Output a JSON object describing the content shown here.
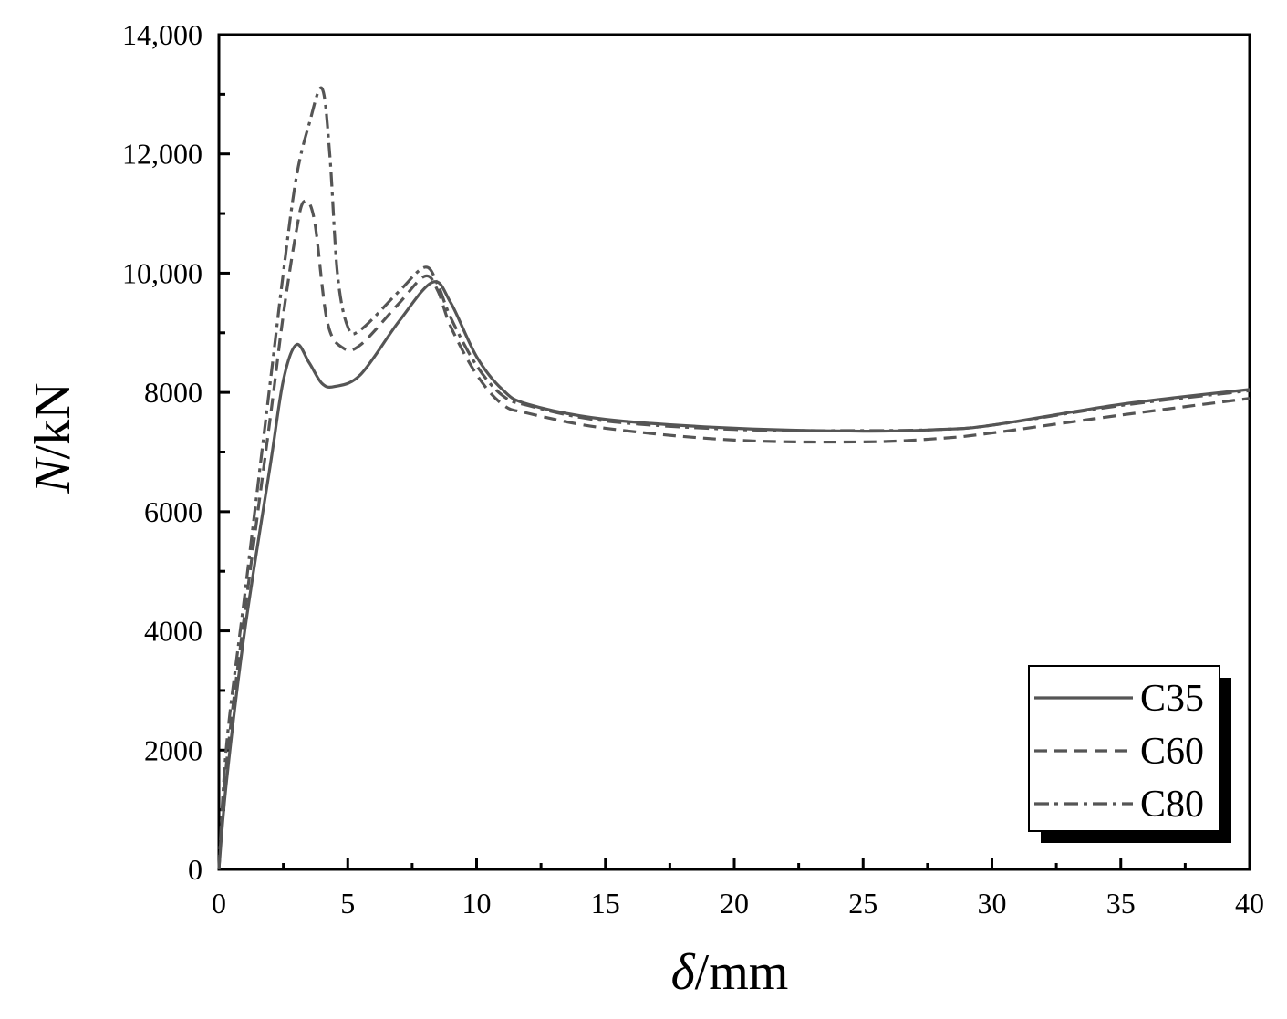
{
  "chart_data": {
    "type": "line",
    "xlabel": {
      "symbol": "δ",
      "unit": "/mm"
    },
    "ylabel": {
      "symbol": "N",
      "unit": "/kN"
    },
    "xlim": [
      0,
      40
    ],
    "ylim": [
      0,
      14000
    ],
    "xticks": [
      0,
      5,
      10,
      15,
      20,
      25,
      30,
      35,
      40
    ],
    "yticks": [
      0,
      2000,
      4000,
      6000,
      8000,
      10000,
      12000,
      14000
    ],
    "xtick_labels": [
      "0",
      "5",
      "10",
      "15",
      "20",
      "25",
      "30",
      "35",
      "40"
    ],
    "ytick_labels": [
      "0",
      "2000",
      "4000",
      "6000",
      "8000",
      "10,000",
      "12,000",
      "14,000"
    ],
    "grid": false,
    "legend_position": "bottom-right",
    "line_color": "#555555",
    "series": [
      {
        "name": "C35",
        "dash": "solid",
        "points": [
          [
            0,
            0
          ],
          [
            0.3,
            1500
          ],
          [
            1,
            4000
          ],
          [
            2,
            6800
          ],
          [
            2.5,
            8200
          ],
          [
            3,
            8800
          ],
          [
            3.5,
            8500
          ],
          [
            4,
            8150
          ],
          [
            4.5,
            8100
          ],
          [
            5.5,
            8300
          ],
          [
            7,
            9200
          ],
          [
            8.3,
            9850
          ],
          [
            9,
            9500
          ],
          [
            10,
            8600
          ],
          [
            11,
            8050
          ],
          [
            12,
            7800
          ],
          [
            15,
            7550
          ],
          [
            20,
            7400
          ],
          [
            25,
            7350
          ],
          [
            28,
            7380
          ],
          [
            30,
            7450
          ],
          [
            35,
            7800
          ],
          [
            40,
            8050
          ]
        ]
      },
      {
        "name": "C60",
        "dash": "dashed",
        "points": [
          [
            0,
            0
          ],
          [
            0.3,
            1800
          ],
          [
            1,
            4300
          ],
          [
            2,
            7600
          ],
          [
            2.5,
            9300
          ],
          [
            3,
            10700
          ],
          [
            3.3,
            11200
          ],
          [
            3.7,
            10900
          ],
          [
            4.2,
            9200
          ],
          [
            4.8,
            8750
          ],
          [
            5.5,
            8800
          ],
          [
            7,
            9500
          ],
          [
            8,
            9950
          ],
          [
            8.5,
            9700
          ],
          [
            9,
            9100
          ],
          [
            10,
            8300
          ],
          [
            11,
            7800
          ],
          [
            12,
            7650
          ],
          [
            15,
            7400
          ],
          [
            20,
            7200
          ],
          [
            25,
            7170
          ],
          [
            28,
            7230
          ],
          [
            30,
            7320
          ],
          [
            35,
            7620
          ],
          [
            40,
            7900
          ]
        ]
      },
      {
        "name": "C80",
        "dash": "dashdot",
        "points": [
          [
            0,
            0
          ],
          [
            0.3,
            2100
          ],
          [
            1,
            4600
          ],
          [
            2,
            8200
          ],
          [
            2.5,
            10000
          ],
          [
            3,
            11600
          ],
          [
            3.5,
            12500
          ],
          [
            4,
            13100
          ],
          [
            4.3,
            12000
          ],
          [
            4.6,
            10000
          ],
          [
            5,
            9100
          ],
          [
            5.5,
            9050
          ],
          [
            7,
            9700
          ],
          [
            8,
            10100
          ],
          [
            8.5,
            9800
          ],
          [
            9,
            9250
          ],
          [
            10,
            8450
          ],
          [
            11,
            7950
          ],
          [
            12,
            7780
          ],
          [
            15,
            7520
          ],
          [
            20,
            7380
          ],
          [
            25,
            7360
          ],
          [
            28,
            7380
          ],
          [
            30,
            7450
          ],
          [
            35,
            7780
          ],
          [
            40,
            8030
          ]
        ]
      }
    ]
  }
}
